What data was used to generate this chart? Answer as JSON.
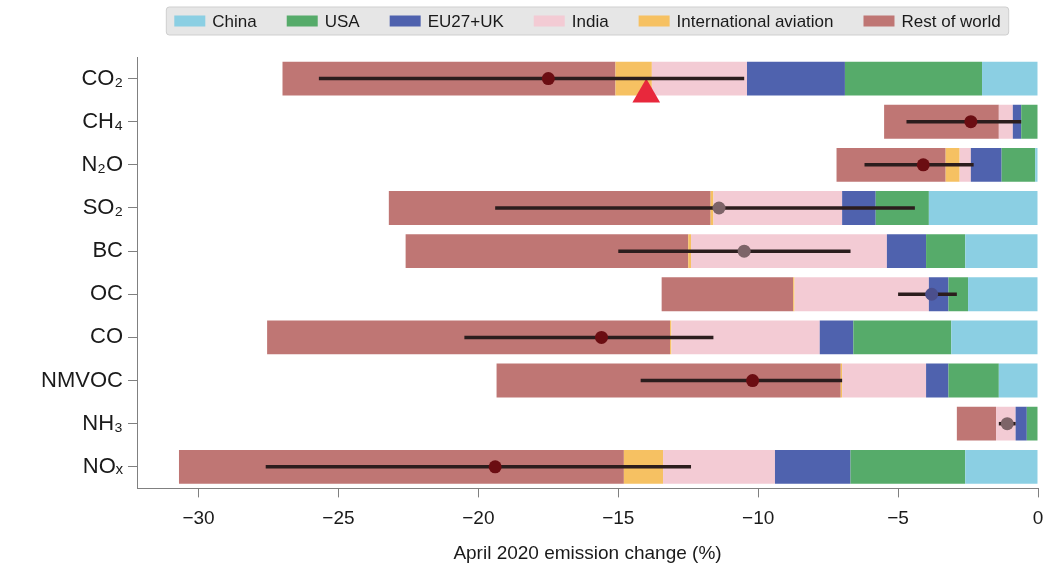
{
  "chart_data": {
    "type": "bar",
    "orientation": "horizontal",
    "stacked": true,
    "legend": "top",
    "xlabel": "April 2020 emission change (%)",
    "categories": [
      "CO₂",
      "CH₄",
      "N₂O",
      "SO₂",
      "BC",
      "OC",
      "CO",
      "NMVOC",
      "NH₃",
      "NOₓ"
    ],
    "xlim": [
      -32.2,
      0
    ],
    "xticks": [
      {
        "value": -30,
        "label": "−30"
      },
      {
        "value": -25,
        "label": "−25"
      },
      {
        "value": -20,
        "label": "−20"
      },
      {
        "value": -15,
        "label": "−15"
      },
      {
        "value": -10,
        "label": "−10"
      },
      {
        "value": -5,
        "label": "−5"
      },
      0
    ],
    "series": [
      {
        "name": "China",
        "color": "#8bcfe3",
        "values": [
          -2.0,
          0,
          -0.1,
          -3.9,
          -2.6,
          -2.5,
          -3.1,
          -1.4,
          0,
          -2.6
        ]
      },
      {
        "name": "USA",
        "color": "#56ab6a",
        "values": [
          -4.9,
          -0.6,
          -1.2,
          -1.9,
          -1.4,
          -0.7,
          -3.5,
          -1.8,
          -0.4,
          -4.1
        ]
      },
      {
        "name": "EU27+UK",
        "color": "#4f62ae",
        "values": [
          -3.5,
          -0.3,
          -1.1,
          -1.2,
          -1.4,
          -0.7,
          -1.2,
          -0.8,
          -0.4,
          -2.7
        ]
      },
      {
        "name": "India",
        "color": "#f3cbd4",
        "values": [
          -3.4,
          -0.5,
          -0.4,
          -4.6,
          -7.0,
          -4.8,
          -5.3,
          -3.0,
          -0.7,
          -4.0
        ]
      },
      {
        "name": "International aviation",
        "color": "#f6c162",
        "values": [
          -1.3,
          0,
          -0.5,
          -0.1,
          -0.1,
          -0.05,
          -0.05,
          -0.05,
          0,
          -1.4
        ]
      },
      {
        "name": "Rest of world",
        "color": "#bf7674",
        "values": [
          -11.9,
          -4.1,
          -3.9,
          -11.5,
          -10.1,
          -4.7,
          -14.4,
          -12.3,
          -1.4,
          -15.9
        ]
      },
      {
        "type": "scatter",
        "marker": "circle",
        "colors": [
          "#6b0d12",
          "#6b0d12",
          "#6b0d12",
          "#7d6468",
          "#7d6468",
          "#4b4f8c",
          "#6b0d12",
          "#6b0d12",
          "#7d6468",
          "#6b0d12"
        ],
        "values": [
          -17.5,
          -2.4,
          -4.1,
          -11.4,
          -10.5,
          -3.8,
          -15.6,
          -10.2,
          -1.1,
          -19.4
        ],
        "errors": [
          [
            -25.7,
            -10.5
          ],
          [
            -4.7,
            -0.6
          ],
          [
            -6.2,
            -2.3
          ],
          [
            -19.4,
            -4.4
          ],
          [
            -15.0,
            -6.7
          ],
          [
            -5.0,
            -2.9
          ],
          [
            -20.5,
            -11.6
          ],
          [
            -14.2,
            -7.0
          ],
          [
            -1.4,
            -0.8
          ],
          [
            -27.6,
            -12.4
          ]
        ]
      },
      {
        "type": "scatter",
        "marker": "triangle",
        "color": "#e8283c",
        "values": [
          -14.0,
          null,
          null,
          null,
          null,
          null,
          null,
          null,
          null,
          null
        ]
      }
    ]
  }
}
